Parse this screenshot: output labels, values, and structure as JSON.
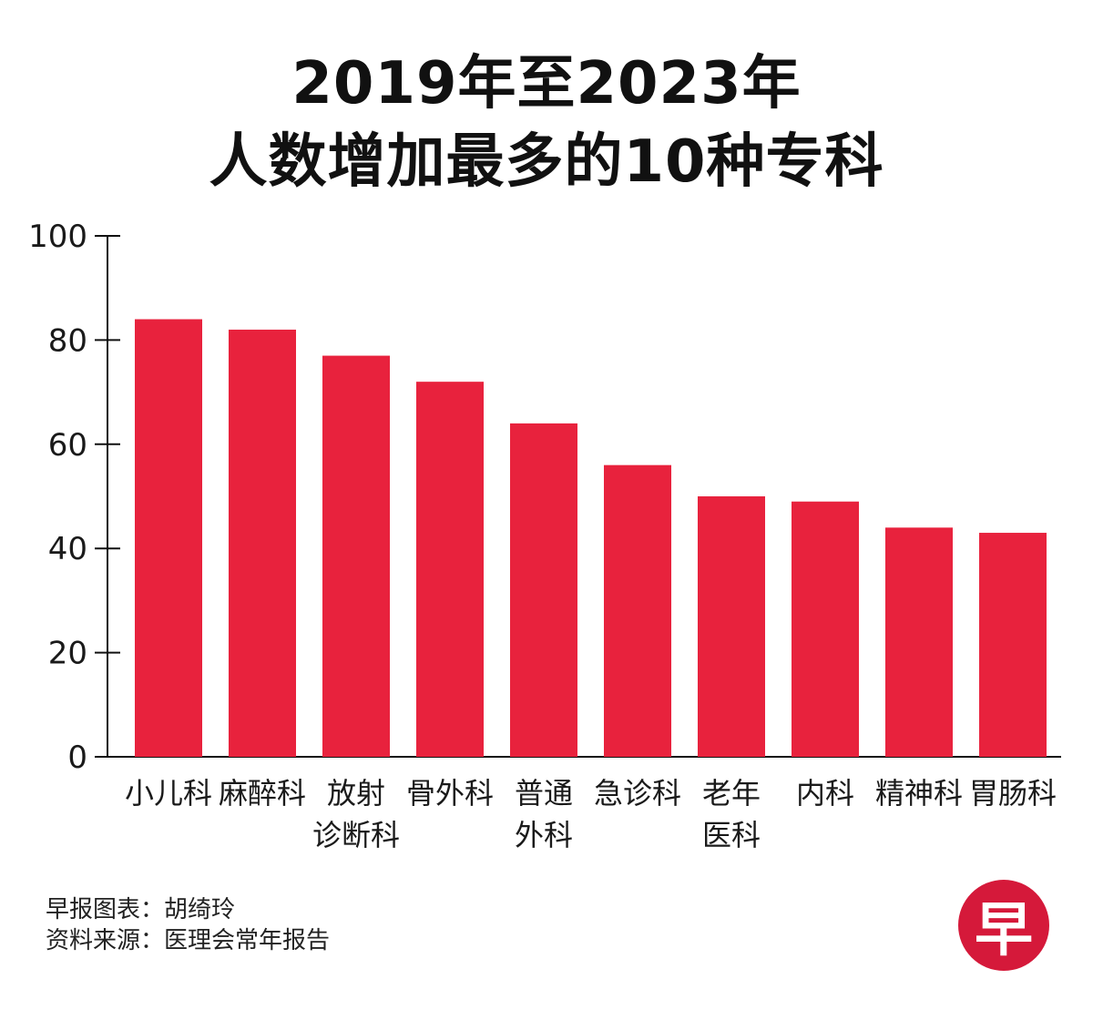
{
  "title_line1": "2019年至2023年",
  "title_line2": "人数增加最多的10种专科",
  "colors": {
    "bar": "#e8223d",
    "axis": "#111111",
    "logo": "#d5193a"
  },
  "chart_data": {
    "type": "bar",
    "title": "2019年至2023年 人数增加最多的10种专科",
    "xlabel": "",
    "ylabel": "",
    "ylim": [
      0,
      100
    ],
    "yticks": [
      0,
      20,
      40,
      60,
      80,
      100
    ],
    "grid": false,
    "categories": [
      [
        "小儿科"
      ],
      [
        "麻醉科"
      ],
      [
        "放射",
        "诊断科"
      ],
      [
        "骨外科"
      ],
      [
        "普通",
        "外科"
      ],
      [
        "急诊科"
      ],
      [
        "老年",
        "医科"
      ],
      [
        "内科"
      ],
      [
        "精神科"
      ],
      [
        "胃肠科"
      ]
    ],
    "values": [
      84,
      82,
      77,
      72,
      64,
      56,
      50,
      49,
      44,
      43
    ]
  },
  "footer": {
    "credit": "早报图表：胡绮玲",
    "source": "资料来源：医理会常年报告"
  },
  "logo": {
    "text": "早"
  }
}
